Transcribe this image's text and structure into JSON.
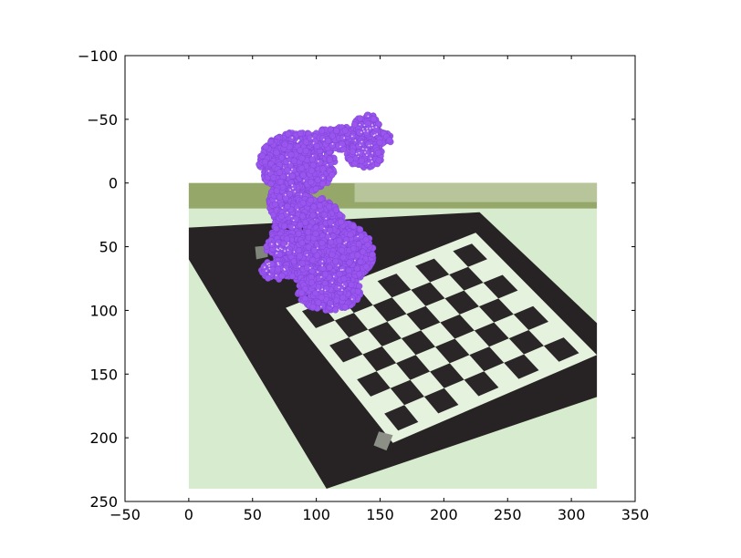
{
  "chart_data": {
    "type": "scatter",
    "title": "",
    "xlabel": "",
    "ylabel": "",
    "xlim": [
      -50,
      350
    ],
    "ylim": [
      250,
      -100
    ],
    "y_inverted": true,
    "xticks": [
      -50,
      0,
      50,
      100,
      150,
      200,
      250,
      300,
      350
    ],
    "xtick_labels": [
      "−50",
      "0",
      "50",
      "100",
      "150",
      "200",
      "250",
      "300",
      "350"
    ],
    "yticks": [
      -100,
      -50,
      0,
      50,
      100,
      150,
      200,
      250
    ],
    "ytick_labels": [
      "−100",
      "−50",
      "0",
      "50",
      "100",
      "150",
      "200",
      "250"
    ],
    "background_image": {
      "description": "camera photo of a checkerboard calibration pattern on a black board",
      "extent_x": [
        0,
        320
      ],
      "extent_y": [
        0,
        240
      ]
    },
    "series": [
      {
        "color": "#9955ee",
        "marker": "o",
        "point_blobs": [
          {
            "cx": 85,
            "cy": -15,
            "rx": 30,
            "ry": 25
          },
          {
            "cx": 125,
            "cy": -35,
            "rx": 35,
            "ry": 9
          },
          {
            "cx": 140,
            "cy": -45,
            "rx": 10,
            "ry": 9
          },
          {
            "cx": 138,
            "cy": -22,
            "rx": 14,
            "ry": 10
          },
          {
            "cx": 78,
            "cy": 15,
            "rx": 15,
            "ry": 18
          },
          {
            "cx": 95,
            "cy": 45,
            "rx": 30,
            "ry": 35
          },
          {
            "cx": 115,
            "cy": 55,
            "rx": 30,
            "ry": 25
          },
          {
            "cx": 110,
            "cy": 85,
            "rx": 25,
            "ry": 15
          },
          {
            "cx": 72,
            "cy": 50,
            "rx": 12,
            "ry": 7
          },
          {
            "cx": 68,
            "cy": 68,
            "rx": 12,
            "ry": 8
          }
        ]
      }
    ],
    "grid": false,
    "legend": "none"
  }
}
